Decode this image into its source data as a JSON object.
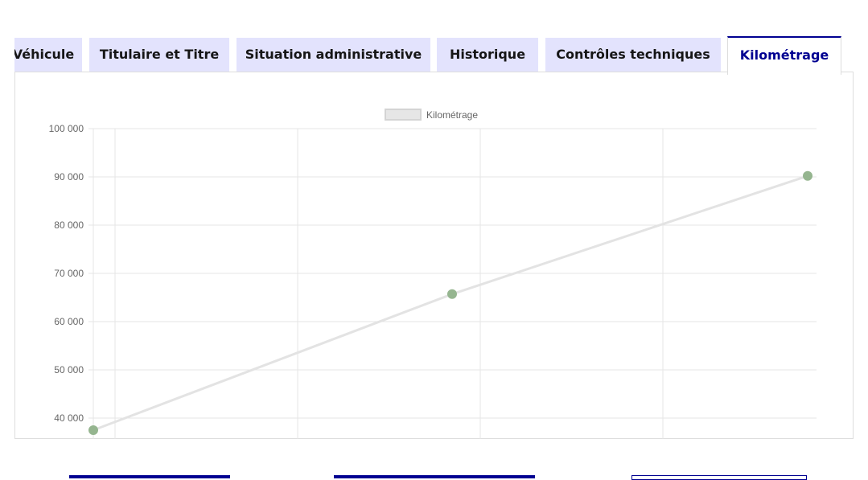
{
  "tabs": [
    {
      "label": "Véhicule",
      "active": false
    },
    {
      "label": "Titulaire et Titre",
      "active": false
    },
    {
      "label": "Situation administrative",
      "active": false
    },
    {
      "label": "Historique",
      "active": false
    },
    {
      "label": "Contrôles techniques",
      "active": false
    },
    {
      "label": "Kilométrage",
      "active": true
    }
  ],
  "chart_data": {
    "type": "line",
    "legend": "Kilométrage",
    "legend_placement": "top",
    "series": [
      {
        "name": "Kilométrage",
        "values": [
          37500,
          65700,
          90200
        ]
      }
    ],
    "ylim": [
      40000,
      100000
    ],
    "yticks": [
      "100 000",
      "90 000",
      "80 000",
      "70 000",
      "60 000",
      "50 000",
      "40 000"
    ],
    "grid": true,
    "colors": {
      "line": "#e3e3e3",
      "point": "#95b58f",
      "accent": "#000091"
    }
  }
}
